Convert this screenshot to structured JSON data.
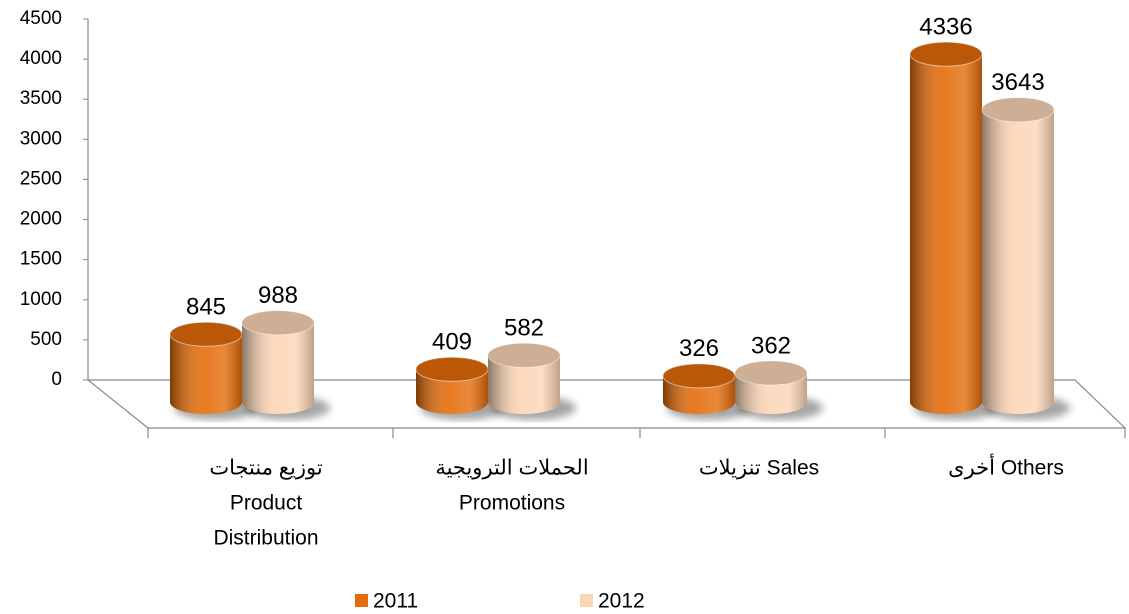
{
  "chart_data": {
    "type": "bar",
    "categories": [
      [
        "توزيع منتجات",
        "Product",
        "Distribution"
      ],
      [
        "الحملات الترويجية",
        "Promotions"
      ],
      [
        "تنزيلات Sales"
      ],
      [
        "أخرى Others"
      ]
    ],
    "series": [
      {
        "name": "2011",
        "color": "#e46c0a",
        "values": [
          845,
          409,
          326,
          4336
        ]
      },
      {
        "name": "2012",
        "color": "#fcd5b5",
        "values": [
          988,
          582,
          362,
          3643
        ]
      }
    ],
    "ylim": [
      0,
      4500
    ],
    "yticks": [
      0,
      500,
      1000,
      1500,
      2000,
      2500,
      3000,
      3500,
      4000,
      4500
    ],
    "legend": "bottom"
  }
}
